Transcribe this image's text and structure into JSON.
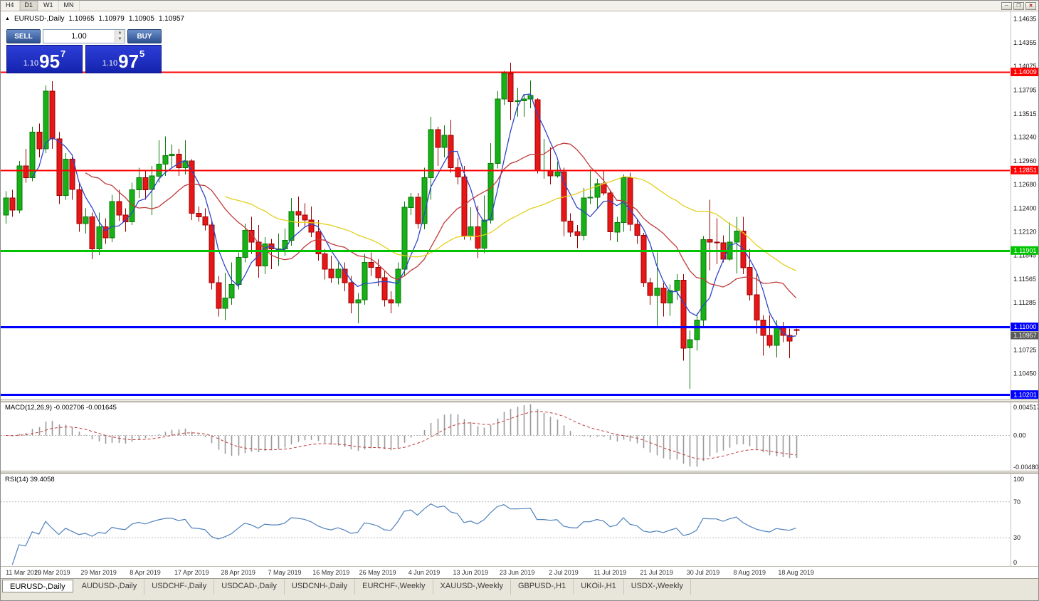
{
  "icons": {
    "bullish_marker": "▲",
    "spinner_up": "▲",
    "spinner_down": "▼",
    "minimize": "─",
    "restore": "❐",
    "close": "✕"
  },
  "toolbar": {
    "timeframes": [
      "H4",
      "D1",
      "W1",
      "MN"
    ],
    "active": "D1"
  },
  "chart_header": {
    "symbol": "EURUSD-,Daily",
    "open": "1.10965",
    "high": "1.10979",
    "low": "1.10905",
    "close": "1.10957"
  },
  "one_click": {
    "sell_label": "SELL",
    "buy_label": "BUY",
    "volume": "1.00",
    "sell_price": {
      "small": "1.10",
      "big": "95",
      "sup": "7"
    },
    "buy_price": {
      "small": "1.10",
      "big": "97",
      "sup": "5"
    }
  },
  "indicator_labels": {
    "macd": "MACD(12,26,9) -0.002706 -0.001645",
    "rsi": "RSI(14) 39.4058"
  },
  "tabs": {
    "items": [
      "EURUSD-,Daily",
      "AUDUSD-,Daily",
      "USDCHF-,Daily",
      "USDCAD-,Daily",
      "USDCNH-,Daily",
      "EURCHF-,Weekly",
      "XAUUSD-,Weekly",
      "GBPUSD-,H1",
      "UKOil-,H1",
      "USDX-,Weekly"
    ],
    "active": "EURUSD-,Daily"
  },
  "chart_data": {
    "type": "candlestick",
    "symbol": "EURUSD",
    "timeframe": "Daily",
    "x_labels": [
      "11 Mar 2019",
      "20 Mar 2019",
      "29 Mar 2019",
      "8 Apr 2019",
      "17 Apr 2019",
      "28 Apr 2019",
      "7 May 2019",
      "16 May 2019",
      "26 May 2019",
      "4 Jun 2019",
      "13 Jun 2019",
      "23 Jun 2019",
      "2 Jul 2019",
      "11 Jul 2019",
      "21 Jul 2019",
      "30 Jul 2019",
      "8 Aug 2019",
      "18 Aug 2019"
    ],
    "x_label_step": 7,
    "price_ticks": [
      "1.14635",
      "1.14355",
      "1.14075",
      "1.13795",
      "1.13515",
      "1.13240",
      "1.12960",
      "1.12680",
      "1.12400",
      "1.12120",
      "1.11845",
      "1.11565",
      "1.11285",
      "1.10725",
      "1.10450"
    ],
    "y_range": [
      1.1014,
      1.1473
    ],
    "levels": [
      {
        "price": 1.14009,
        "label": "1.14009",
        "color": "#ff0000",
        "width": 2
      },
      {
        "price": 1.12851,
        "label": "1.12851",
        "color": "#ff0000",
        "width": 2
      },
      {
        "price": 1.11901,
        "label": "1.11901",
        "color": "#00c400",
        "width": 3
      },
      {
        "price": 1.11,
        "label": "1.11000",
        "color": "#0000ff",
        "width": 3
      },
      {
        "price": 1.10201,
        "label": "1.10201",
        "color": "#0000ff",
        "width": 3
      }
    ],
    "current_price": {
      "value": 1.10957,
      "label": "1.10957"
    },
    "moving_averages": [
      {
        "name": "ma-fast",
        "period": 5,
        "color": "#2e45c8"
      },
      {
        "name": "ma-mid",
        "period": 13,
        "color": "#c03a3a"
      },
      {
        "name": "ma-slow",
        "period": 34,
        "color": "#e3cf1e"
      }
    ],
    "candles": [
      [
        1.1232,
        1.126,
        1.1222,
        1.1252
      ],
      [
        1.1252,
        1.1262,
        1.123,
        1.1238
      ],
      [
        1.1238,
        1.1296,
        1.1234,
        1.129
      ],
      [
        1.129,
        1.131,
        1.127,
        1.1276
      ],
      [
        1.1276,
        1.1336,
        1.1272,
        1.133
      ],
      [
        1.133,
        1.134,
        1.13,
        1.131
      ],
      [
        1.131,
        1.1385,
        1.1305,
        1.1378
      ],
      [
        1.1378,
        1.139,
        1.131,
        1.1322
      ],
      [
        1.1322,
        1.133,
        1.1245,
        1.1255
      ],
      [
        1.1255,
        1.1305,
        1.125,
        1.1298
      ],
      [
        1.1298,
        1.13,
        1.125,
        1.1262
      ],
      [
        1.1262,
        1.127,
        1.1212,
        1.1222
      ],
      [
        1.1222,
        1.124,
        1.121,
        1.123
      ],
      [
        1.123,
        1.1235,
        1.118,
        1.1192
      ],
      [
        1.1192,
        1.1235,
        1.1185,
        1.1218
      ],
      [
        1.1218,
        1.1228,
        1.1198,
        1.1205
      ],
      [
        1.1205,
        1.1256,
        1.12,
        1.1248
      ],
      [
        1.1248,
        1.1262,
        1.1225,
        1.1232
      ],
      [
        1.1232,
        1.124,
        1.1212,
        1.1224
      ],
      [
        1.1224,
        1.127,
        1.122,
        1.1262
      ],
      [
        1.1262,
        1.1288,
        1.1252,
        1.1276
      ],
      [
        1.1276,
        1.1285,
        1.125,
        1.1262
      ],
      [
        1.1262,
        1.129,
        1.1232,
        1.1278
      ],
      [
        1.1278,
        1.132,
        1.127,
        1.1292
      ],
      [
        1.1292,
        1.1325,
        1.1278,
        1.1302
      ],
      [
        1.1302,
        1.1315,
        1.1288,
        1.1304
      ],
      [
        1.1304,
        1.131,
        1.1278,
        1.1288
      ],
      [
        1.1288,
        1.132,
        1.128,
        1.1296
      ],
      [
        1.1296,
        1.1298,
        1.1226,
        1.1234
      ],
      [
        1.1234,
        1.1242,
        1.1224,
        1.123
      ],
      [
        1.123,
        1.124,
        1.1214,
        1.122
      ],
      [
        1.122,
        1.1226,
        1.1144,
        1.1152
      ],
      [
        1.1152,
        1.116,
        1.1112,
        1.1122
      ],
      [
        1.1122,
        1.1164,
        1.1108,
        1.1134
      ],
      [
        1.1134,
        1.1176,
        1.1126,
        1.115
      ],
      [
        1.115,
        1.1188,
        1.1144,
        1.1182
      ],
      [
        1.1182,
        1.1222,
        1.1176,
        1.1214
      ],
      [
        1.1214,
        1.123,
        1.1186,
        1.12
      ],
      [
        1.12,
        1.122,
        1.1158,
        1.1172
      ],
      [
        1.1172,
        1.1206,
        1.1162,
        1.1198
      ],
      [
        1.1198,
        1.1204,
        1.1168,
        1.1192
      ],
      [
        1.1192,
        1.121,
        1.1172,
        1.1192
      ],
      [
        1.1192,
        1.1216,
        1.1184,
        1.1202
      ],
      [
        1.1202,
        1.1252,
        1.1196,
        1.1236
      ],
      [
        1.1236,
        1.1254,
        1.1218,
        1.1232
      ],
      [
        1.1232,
        1.1246,
        1.1218,
        1.1226
      ],
      [
        1.1226,
        1.1242,
        1.1206,
        1.1212
      ],
      [
        1.1212,
        1.1226,
        1.1178,
        1.1186
      ],
      [
        1.1186,
        1.1192,
        1.1156,
        1.1168
      ],
      [
        1.1168,
        1.1184,
        1.1152,
        1.1158
      ],
      [
        1.1158,
        1.1176,
        1.115,
        1.1168
      ],
      [
        1.1168,
        1.1176,
        1.1142,
        1.1152
      ],
      [
        1.1152,
        1.116,
        1.1116,
        1.1128
      ],
      [
        1.1128,
        1.114,
        1.1104,
        1.1132
      ],
      [
        1.1132,
        1.1186,
        1.1126,
        1.1176
      ],
      [
        1.1176,
        1.1188,
        1.116,
        1.117
      ],
      [
        1.117,
        1.118,
        1.1148,
        1.1158
      ],
      [
        1.1158,
        1.1166,
        1.1124,
        1.1132
      ],
      [
        1.1132,
        1.1142,
        1.1116,
        1.1128
      ],
      [
        1.1128,
        1.1176,
        1.1124,
        1.1168
      ],
      [
        1.1168,
        1.1248,
        1.116,
        1.1241
      ],
      [
        1.1241,
        1.1258,
        1.1232,
        1.1253
      ],
      [
        1.1253,
        1.1258,
        1.1216,
        1.1222
      ],
      [
        1.1222,
        1.1288,
        1.1215,
        1.1276
      ],
      [
        1.1276,
        1.1348,
        1.125,
        1.1333
      ],
      [
        1.1333,
        1.1336,
        1.129,
        1.1312
      ],
      [
        1.1312,
        1.1338,
        1.13,
        1.1326
      ],
      [
        1.1326,
        1.1344,
        1.1282,
        1.1288
      ],
      [
        1.1288,
        1.1299,
        1.1268,
        1.1277
      ],
      [
        1.1277,
        1.129,
        1.1203,
        1.1207
      ],
      [
        1.1207,
        1.1241,
        1.1202,
        1.1218
      ],
      [
        1.1218,
        1.1243,
        1.1181,
        1.1193
      ],
      [
        1.1193,
        1.1255,
        1.1187,
        1.1226
      ],
      [
        1.1226,
        1.1317,
        1.1222,
        1.1293
      ],
      [
        1.1293,
        1.1378,
        1.1287,
        1.1369
      ],
      [
        1.1369,
        1.1402,
        1.1362,
        1.1399
      ],
      [
        1.1399,
        1.1412,
        1.1344,
        1.1366
      ],
      [
        1.1366,
        1.1382,
        1.1348,
        1.1367
      ],
      [
        1.1367,
        1.1375,
        1.1348,
        1.1369
      ],
      [
        1.1369,
        1.1391,
        1.1358,
        1.1373
      ],
      [
        1.1368,
        1.137,
        1.1281,
        1.1285
      ],
      [
        1.1285,
        1.1322,
        1.1275,
        1.1285
      ],
      [
        1.1285,
        1.1312,
        1.1268,
        1.1278
      ],
      [
        1.1278,
        1.1295,
        1.1276,
        1.1283
      ],
      [
        1.1283,
        1.1288,
        1.1207,
        1.1225
      ],
      [
        1.1225,
        1.1234,
        1.1206,
        1.1212
      ],
      [
        1.1212,
        1.122,
        1.1193,
        1.1208
      ],
      [
        1.1208,
        1.1264,
        1.1202,
        1.1252
      ],
      [
        1.1252,
        1.1286,
        1.1245,
        1.1253
      ],
      [
        1.1253,
        1.1275,
        1.1239,
        1.1269
      ],
      [
        1.1269,
        1.1284,
        1.1255,
        1.1258
      ],
      [
        1.1258,
        1.1262,
        1.1202,
        1.1212
      ],
      [
        1.1212,
        1.123,
        1.12,
        1.1223
      ],
      [
        1.1223,
        1.128,
        1.1212,
        1.1276
      ],
      [
        1.1276,
        1.1282,
        1.1213,
        1.1221
      ],
      [
        1.1221,
        1.1227,
        1.1198,
        1.1208
      ],
      [
        1.1208,
        1.1211,
        1.1147,
        1.1152
      ],
      [
        1.1152,
        1.1158,
        1.1126,
        1.1137
      ],
      [
        1.1137,
        1.1188,
        1.1101,
        1.1146
      ],
      [
        1.1146,
        1.1152,
        1.1112,
        1.1128
      ],
      [
        1.1128,
        1.115,
        1.1113,
        1.1143
      ],
      [
        1.1143,
        1.1162,
        1.1132,
        1.1155
      ],
      [
        1.1155,
        1.1162,
        1.106,
        1.1075
      ],
      [
        1.1075,
        1.1096,
        1.1027,
        1.1085
      ],
      [
        1.1085,
        1.1116,
        1.1072,
        1.1108
      ],
      [
        1.1108,
        1.1207,
        1.1101,
        1.1203
      ],
      [
        1.1203,
        1.125,
        1.1167,
        1.12
      ],
      [
        1.12,
        1.1228,
        1.1174,
        1.1199
      ],
      [
        1.1199,
        1.1208,
        1.1176,
        1.118
      ],
      [
        1.118,
        1.1223,
        1.1178,
        1.12
      ],
      [
        1.12,
        1.123,
        1.1163,
        1.1213
      ],
      [
        1.1213,
        1.123,
        1.1162,
        1.117
      ],
      [
        1.117,
        1.1192,
        1.1131,
        1.1138
      ],
      [
        1.1138,
        1.1163,
        1.1092,
        1.1108
      ],
      [
        1.1108,
        1.1114,
        1.1066,
        1.109
      ],
      [
        1.109,
        1.1114,
        1.1075,
        1.1078
      ],
      [
        1.1078,
        1.1108,
        1.1064,
        1.11
      ],
      [
        1.11,
        1.1106,
        1.1082,
        1.109
      ],
      [
        1.109,
        1.1098,
        1.1063,
        1.1083
      ],
      [
        1.10965,
        1.10979,
        1.10905,
        1.10957
      ]
    ],
    "macd": {
      "params": "12,26,9",
      "value": "-0.002706",
      "signal_value": "-0.001645",
      "range": [
        -0.004806,
        0.004517
      ],
      "scale_labels": [
        "0.004517",
        "0.00",
        "-0.004806"
      ],
      "histogram_color": "#9a9a9a",
      "signal_color": "#c03a3a"
    },
    "rsi": {
      "period": 14,
      "value": "39.4058",
      "range": [
        0,
        100
      ],
      "levels": [
        70,
        30
      ],
      "scale_labels": [
        "100",
        "70",
        "30",
        "0"
      ],
      "line_color": "#4f81bd"
    },
    "colors": {
      "up_fill": "#17b017",
      "up_border": "#0a7a0a",
      "down_fill": "#e81717",
      "down_border": "#9a0000",
      "background": "#ffffff",
      "scale_text": "#111111"
    }
  }
}
